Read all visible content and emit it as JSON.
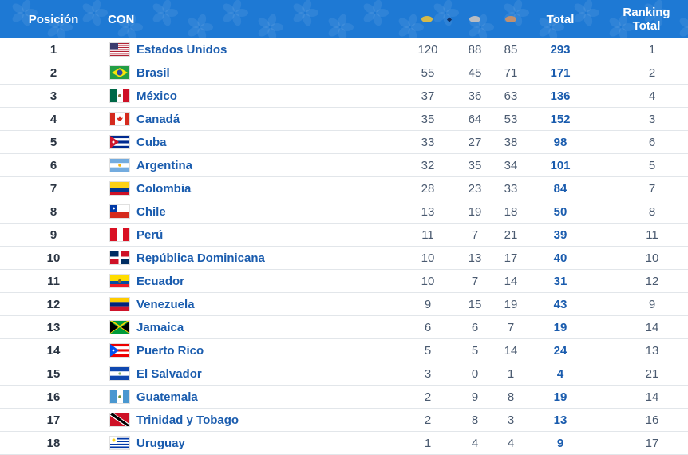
{
  "header": {
    "position": "Posición",
    "con": "CON",
    "gold_icon": "gold-medal-icon",
    "sort_icon": "sort-icon",
    "sort_glyph": "⬥",
    "silver_icon": "silver-medal-icon",
    "bronze_icon": "bronze-medal-icon",
    "total": "Total",
    "ranking_line1": "Ranking",
    "ranking_line2": "Total"
  },
  "colors": {
    "header_bg": "#1e79d4",
    "gold": "#d4b94a",
    "silver": "#b8bcc2",
    "bronze": "#c09070",
    "country_link": "#1a5cae"
  },
  "rows": [
    {
      "pos": "1",
      "country": "Estados Unidos",
      "flag": "usa",
      "gold": "120",
      "silver": "88",
      "bronze": "85",
      "total": "293",
      "rank": "1"
    },
    {
      "pos": "2",
      "country": "Brasil",
      "flag": "brazil",
      "gold": "55",
      "silver": "45",
      "bronze": "71",
      "total": "171",
      "rank": "2"
    },
    {
      "pos": "3",
      "country": "México",
      "flag": "mexico",
      "gold": "37",
      "silver": "36",
      "bronze": "63",
      "total": "136",
      "rank": "4"
    },
    {
      "pos": "4",
      "country": "Canadá",
      "flag": "canada",
      "gold": "35",
      "silver": "64",
      "bronze": "53",
      "total": "152",
      "rank": "3"
    },
    {
      "pos": "5",
      "country": "Cuba",
      "flag": "cuba",
      "gold": "33",
      "silver": "27",
      "bronze": "38",
      "total": "98",
      "rank": "6"
    },
    {
      "pos": "6",
      "country": "Argentina",
      "flag": "argentina",
      "gold": "32",
      "silver": "35",
      "bronze": "34",
      "total": "101",
      "rank": "5"
    },
    {
      "pos": "7",
      "country": "Colombia",
      "flag": "colombia",
      "gold": "28",
      "silver": "23",
      "bronze": "33",
      "total": "84",
      "rank": "7"
    },
    {
      "pos": "8",
      "country": "Chile",
      "flag": "chile",
      "gold": "13",
      "silver": "19",
      "bronze": "18",
      "total": "50",
      "rank": "8"
    },
    {
      "pos": "9",
      "country": "Perú",
      "flag": "peru",
      "gold": "11",
      "silver": "7",
      "bronze": "21",
      "total": "39",
      "rank": "11"
    },
    {
      "pos": "10",
      "country": "República Dominicana",
      "flag": "dominican-republic",
      "gold": "10",
      "silver": "13",
      "bronze": "17",
      "total": "40",
      "rank": "10"
    },
    {
      "pos": "11",
      "country": "Ecuador",
      "flag": "ecuador",
      "gold": "10",
      "silver": "7",
      "bronze": "14",
      "total": "31",
      "rank": "12"
    },
    {
      "pos": "12",
      "country": "Venezuela",
      "flag": "venezuela",
      "gold": "9",
      "silver": "15",
      "bronze": "19",
      "total": "43",
      "rank": "9"
    },
    {
      "pos": "13",
      "country": "Jamaica",
      "flag": "jamaica",
      "gold": "6",
      "silver": "6",
      "bronze": "7",
      "total": "19",
      "rank": "14"
    },
    {
      "pos": "14",
      "country": "Puerto Rico",
      "flag": "puerto-rico",
      "gold": "5",
      "silver": "5",
      "bronze": "14",
      "total": "24",
      "rank": "13"
    },
    {
      "pos": "15",
      "country": "El Salvador",
      "flag": "el-salvador",
      "gold": "3",
      "silver": "0",
      "bronze": "1",
      "total": "4",
      "rank": "21"
    },
    {
      "pos": "16",
      "country": "Guatemala",
      "flag": "guatemala",
      "gold": "2",
      "silver": "9",
      "bronze": "8",
      "total": "19",
      "rank": "14"
    },
    {
      "pos": "17",
      "country": "Trinidad y Tobago",
      "flag": "trinidad-and-tobago",
      "gold": "2",
      "silver": "8",
      "bronze": "3",
      "total": "13",
      "rank": "16"
    },
    {
      "pos": "18",
      "country": "Uruguay",
      "flag": "uruguay",
      "gold": "1",
      "silver": "4",
      "bronze": "4",
      "total": "9",
      "rank": "17"
    }
  ]
}
